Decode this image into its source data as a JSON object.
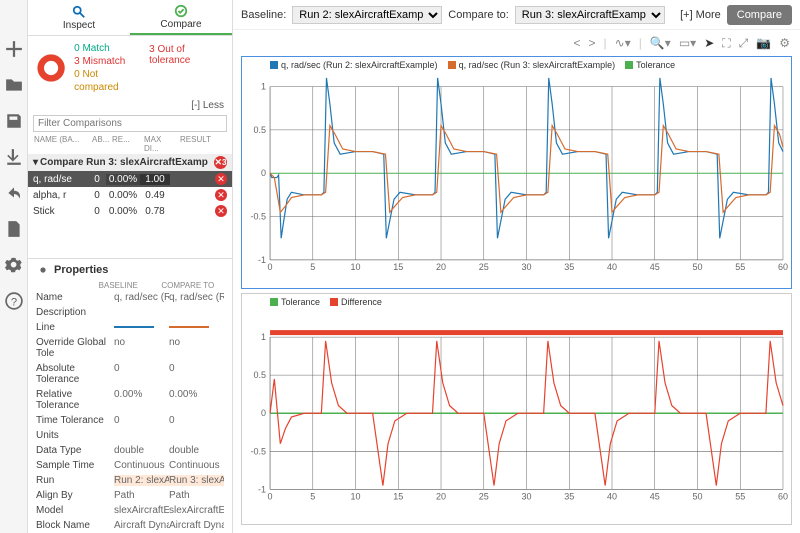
{
  "tabs": {
    "inspect": "Inspect",
    "compare": "Compare"
  },
  "summary": {
    "match": "0 Match",
    "mismatch": "3 Mismatch",
    "notcompared": "0 Not compared",
    "oot": "3 Out of tolerance",
    "less": "[-] Less"
  },
  "filter_placeholder": "Filter Comparisons",
  "thdr": [
    "NAME (BA...",
    "AB...",
    "RE...",
    "MAX DI...",
    "RESULT"
  ],
  "group": {
    "label": "Compare Run 3: slexAircraftExamp",
    "badge": "3"
  },
  "rows": [
    {
      "name": "q, rad/se",
      "abs": "0",
      "rel": "0.00%",
      "max": "1.00",
      "sel": true
    },
    {
      "name": "alpha, r",
      "abs": "0",
      "rel": "0.00%",
      "max": "0.49",
      "sel": false
    },
    {
      "name": "Stick",
      "abs": "0",
      "rel": "0.00%",
      "max": "0.78",
      "sel": false
    }
  ],
  "props_title": "Properties",
  "props_hdr": [
    "",
    "BASELINE",
    "COMPARE TO"
  ],
  "props": [
    {
      "n": "Name",
      "b": "q, rad/sec (Run",
      "c": "q, rad/sec (Run"
    },
    {
      "n": "Description",
      "b": "",
      "c": ""
    },
    {
      "n": "Line",
      "b": "#1f77b4",
      "c": "#d66b2e",
      "line": true
    },
    {
      "n": "Override Global Tole",
      "b": "no",
      "c": "no"
    },
    {
      "n": "Absolute Tolerance",
      "b": "0",
      "c": "0"
    },
    {
      "n": "Relative Tolerance",
      "b": "0.00%",
      "c": "0.00%"
    },
    {
      "n": "Time Tolerance",
      "b": "0",
      "c": "0"
    },
    {
      "n": "Units",
      "b": "",
      "c": ""
    },
    {
      "n": "Data Type",
      "b": "double",
      "c": "double"
    },
    {
      "n": "Sample Time",
      "b": "Continuous",
      "c": "Continuous"
    },
    {
      "n": "Run",
      "b": "Run 2: slexAirc",
      "c": "Run 3: slexAirc",
      "hl": true
    },
    {
      "n": "Align By",
      "b": "Path",
      "c": "Path"
    },
    {
      "n": "Model",
      "b": "slexAircraftExa",
      "c": "slexAircraftExa"
    },
    {
      "n": "Block Name",
      "b": "Aircraft Dynam",
      "c": "Aircraft Dynam"
    }
  ],
  "toolbar": {
    "baseline_lbl": "Baseline:",
    "baseline_val": "Run 2: slexAircraftExample",
    "compare_lbl": "Compare to:",
    "compare_val": "Run 3: slexAircraftExample",
    "more": "[+] More",
    "btn": "Compare"
  },
  "chart1": {
    "legend": [
      {
        "color": "#1f77b4",
        "label": "q, rad/sec (Run 2: slexAircraftExample)"
      },
      {
        "color": "#d66b2e",
        "label": "q, rad/sec (Run 3: slexAircraftExample)"
      },
      {
        "color": "#4caf50",
        "label": "Tolerance"
      }
    ],
    "ylim": [
      -1.0,
      1.0
    ],
    "yticks": [
      -1.0,
      -0.5,
      0,
      0.5,
      1.0
    ],
    "xlim": [
      0,
      60
    ],
    "xticks": [
      0,
      5,
      10,
      15,
      20,
      25,
      30,
      35,
      40,
      45,
      50,
      55,
      60
    ],
    "tol_color": "#4caf50",
    "series": [
      {
        "color": "#1f77b4",
        "pts": [
          [
            0,
            0
          ],
          [
            0.2,
            -0.05
          ],
          [
            0.8,
            -0.05
          ],
          [
            1.0,
            -0.02
          ],
          [
            1.3,
            -0.75
          ],
          [
            1.6,
            -0.55
          ],
          [
            2.0,
            -0.3
          ],
          [
            2.5,
            -0.22
          ],
          [
            4,
            -0.25
          ],
          [
            6,
            -0.25
          ],
          [
            6.3,
            -0.22
          ],
          [
            6.6,
            1.1
          ],
          [
            7.0,
            0.8
          ],
          [
            7.5,
            0.35
          ],
          [
            8.2,
            0.22
          ],
          [
            10,
            0.25
          ],
          [
            12,
            0.25
          ],
          [
            13.3,
            0.22
          ],
          [
            13.6,
            -0.75
          ],
          [
            14.0,
            -0.55
          ],
          [
            14.5,
            -0.3
          ],
          [
            15.2,
            -0.22
          ],
          [
            17,
            -0.25
          ],
          [
            19,
            -0.25
          ],
          [
            19.3,
            -0.22
          ],
          [
            19.6,
            1.1
          ],
          [
            20.0,
            0.8
          ],
          [
            20.5,
            0.35
          ],
          [
            21.2,
            0.22
          ],
          [
            23,
            0.25
          ],
          [
            25,
            0.25
          ],
          [
            26.3,
            0.22
          ],
          [
            26.6,
            -0.75
          ],
          [
            27.0,
            -0.55
          ],
          [
            27.5,
            -0.3
          ],
          [
            28.2,
            -0.22
          ],
          [
            30,
            -0.25
          ],
          [
            32,
            -0.25
          ],
          [
            32.3,
            -0.22
          ],
          [
            32.6,
            1.1
          ],
          [
            33.0,
            0.8
          ],
          [
            33.5,
            0.35
          ],
          [
            34.2,
            0.22
          ],
          [
            36,
            0.25
          ],
          [
            38,
            0.25
          ],
          [
            39.3,
            0.22
          ],
          [
            39.6,
            -0.75
          ],
          [
            40.0,
            -0.55
          ],
          [
            40.5,
            -0.3
          ],
          [
            41.2,
            -0.22
          ],
          [
            43,
            -0.25
          ],
          [
            45,
            -0.25
          ],
          [
            45.3,
            -0.22
          ],
          [
            45.6,
            1.1
          ],
          [
            46.0,
            0.8
          ],
          [
            46.5,
            0.35
          ],
          [
            47.2,
            0.22
          ],
          [
            49,
            0.25
          ],
          [
            51,
            0.25
          ],
          [
            52.3,
            0.22
          ],
          [
            52.6,
            -0.75
          ],
          [
            53.0,
            -0.55
          ],
          [
            53.5,
            -0.3
          ],
          [
            54.2,
            -0.22
          ],
          [
            56,
            -0.25
          ],
          [
            58,
            -0.25
          ],
          [
            58.3,
            -0.22
          ],
          [
            58.6,
            1.1
          ],
          [
            59.0,
            0.8
          ],
          [
            59.5,
            0.35
          ],
          [
            60,
            0.25
          ]
        ]
      },
      {
        "color": "#d66b2e",
        "pts": [
          [
            0,
            0
          ],
          [
            0.5,
            -0.05
          ],
          [
            1.2,
            -0.45
          ],
          [
            1.8,
            -0.38
          ],
          [
            2.5,
            -0.28
          ],
          [
            4,
            -0.25
          ],
          [
            6,
            -0.25
          ],
          [
            6.5,
            -0.22
          ],
          [
            7.0,
            0.55
          ],
          [
            7.6,
            0.45
          ],
          [
            8.5,
            0.28
          ],
          [
            10,
            0.25
          ],
          [
            12,
            0.25
          ],
          [
            13.5,
            0.22
          ],
          [
            14.0,
            -0.45
          ],
          [
            14.6,
            -0.38
          ],
          [
            15.5,
            -0.28
          ],
          [
            17,
            -0.25
          ],
          [
            19,
            -0.25
          ],
          [
            19.5,
            -0.22
          ],
          [
            20.0,
            0.55
          ],
          [
            20.6,
            0.45
          ],
          [
            21.5,
            0.28
          ],
          [
            23,
            0.25
          ],
          [
            25,
            0.25
          ],
          [
            26.5,
            0.22
          ],
          [
            27.0,
            -0.45
          ],
          [
            27.6,
            -0.38
          ],
          [
            28.5,
            -0.28
          ],
          [
            30,
            -0.25
          ],
          [
            32,
            -0.25
          ],
          [
            32.5,
            -0.22
          ],
          [
            33.0,
            0.55
          ],
          [
            33.6,
            0.45
          ],
          [
            34.5,
            0.28
          ],
          [
            36,
            0.25
          ],
          [
            38,
            0.25
          ],
          [
            39.5,
            0.22
          ],
          [
            40.0,
            -0.45
          ],
          [
            40.6,
            -0.38
          ],
          [
            41.5,
            -0.28
          ],
          [
            43,
            -0.25
          ],
          [
            45,
            -0.25
          ],
          [
            45.5,
            -0.22
          ],
          [
            46.0,
            0.55
          ],
          [
            46.6,
            0.45
          ],
          [
            47.5,
            0.28
          ],
          [
            49,
            0.25
          ],
          [
            51,
            0.25
          ],
          [
            52.5,
            0.22
          ],
          [
            53.0,
            -0.45
          ],
          [
            53.6,
            -0.38
          ],
          [
            54.5,
            -0.28
          ],
          [
            56,
            -0.25
          ],
          [
            58,
            -0.25
          ],
          [
            58.5,
            -0.22
          ],
          [
            59.0,
            0.55
          ],
          [
            59.6,
            0.45
          ],
          [
            60,
            0.3
          ]
        ]
      }
    ]
  },
  "chart2": {
    "legend": [
      {
        "color": "#4caf50",
        "label": "Tolerance"
      },
      {
        "color": "#e6432e",
        "label": "Difference"
      }
    ],
    "ylim": [
      -1.0,
      1.0
    ],
    "yticks": [
      -1.0,
      -0.5,
      0,
      0.5,
      1.0
    ],
    "xlim": [
      0,
      60
    ],
    "xticks": [
      0,
      5,
      10,
      15,
      20,
      25,
      30,
      35,
      40,
      45,
      50,
      55,
      60
    ],
    "bar_color": "#e6432e",
    "series": [
      {
        "color": "#e6432e",
        "pts": [
          [
            0,
            0
          ],
          [
            0.5,
            0.45
          ],
          [
            1.2,
            -0.4
          ],
          [
            1.8,
            -0.2
          ],
          [
            2.5,
            -0.05
          ],
          [
            4,
            0
          ],
          [
            6,
            0
          ],
          [
            6.5,
            0.95
          ],
          [
            7.2,
            0.4
          ],
          [
            8.0,
            0.1
          ],
          [
            9,
            0
          ],
          [
            12,
            0
          ],
          [
            13.2,
            -0.95
          ],
          [
            13.8,
            -0.4
          ],
          [
            14.6,
            -0.1
          ],
          [
            16,
            0
          ],
          [
            19,
            0
          ],
          [
            19.5,
            0.95
          ],
          [
            20.2,
            0.4
          ],
          [
            21.0,
            0.1
          ],
          [
            22,
            0
          ],
          [
            25,
            0
          ],
          [
            26.2,
            -0.95
          ],
          [
            26.8,
            -0.4
          ],
          [
            27.6,
            -0.1
          ],
          [
            29,
            0
          ],
          [
            32,
            0
          ],
          [
            32.5,
            0.95
          ],
          [
            33.2,
            0.4
          ],
          [
            34.0,
            0.1
          ],
          [
            35,
            0
          ],
          [
            38,
            0
          ],
          [
            39.2,
            -0.95
          ],
          [
            39.8,
            -0.4
          ],
          [
            40.6,
            -0.1
          ],
          [
            42,
            0
          ],
          [
            45,
            0
          ],
          [
            45.5,
            0.95
          ],
          [
            46.2,
            0.4
          ],
          [
            47.0,
            0.1
          ],
          [
            48,
            0
          ],
          [
            51,
            0
          ],
          [
            52.2,
            -0.95
          ],
          [
            52.8,
            -0.4
          ],
          [
            53.6,
            -0.1
          ],
          [
            55,
            0
          ],
          [
            58,
            0
          ],
          [
            58.5,
            0.95
          ],
          [
            59.2,
            0.4
          ],
          [
            60,
            0.1
          ]
        ]
      }
    ],
    "tol_y": 0,
    "tol_color": "#4caf50"
  }
}
